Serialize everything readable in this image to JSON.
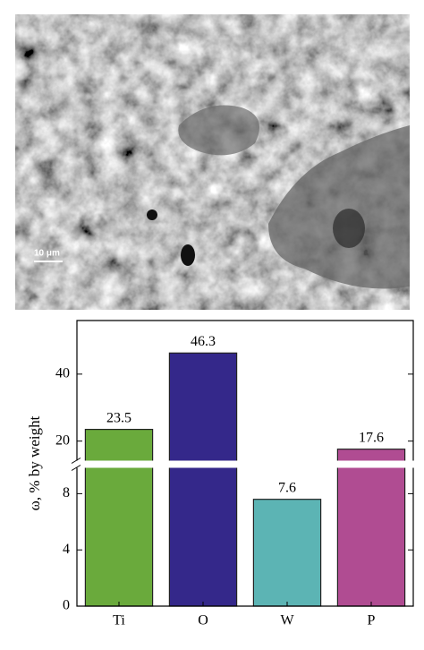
{
  "image": {
    "scale_label": "10 μm"
  },
  "chart_data": {
    "type": "bar",
    "ylabel": "ω, % by weight",
    "categories": [
      "Ti",
      "O",
      "W",
      "P"
    ],
    "values": [
      23.5,
      46.3,
      7.6,
      17.6
    ],
    "value_labels": [
      "23.5",
      "46.3",
      "7.6",
      "17.6"
    ],
    "colors": [
      "#6aaa3c",
      "#34288a",
      "#5cb4b4",
      "#b04c92"
    ],
    "ylim": [
      0,
      56
    ],
    "y_break": [
      10,
      13.5
    ],
    "yticks": [
      0,
      4,
      8,
      20,
      40
    ]
  }
}
